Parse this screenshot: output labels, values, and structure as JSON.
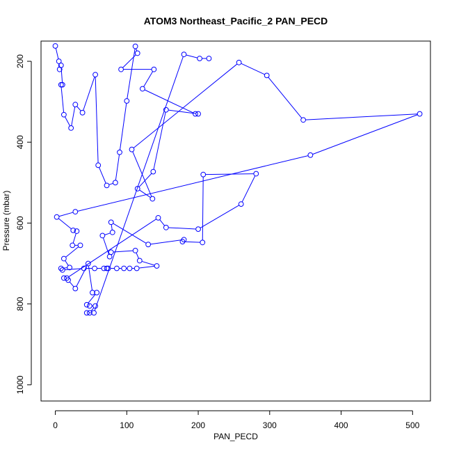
{
  "chart_data": {
    "type": "scatter",
    "title": "ATOM3 Northeast_Pacific_2 PAN_PECD",
    "xlabel": "PAN_PECD",
    "ylabel": "Pressure (mbar)",
    "xlim": [
      -20,
      525
    ],
    "ylim": [
      1040,
      150
    ],
    "y_reversed": true,
    "x_ticks": [
      "0",
      "100",
      "200",
      "300",
      "400",
      "500"
    ],
    "y_ticks": [
      "200",
      "400",
      "600",
      "800",
      "1000"
    ],
    "grid": false,
    "line_color": "#0000ff",
    "series": [
      {
        "points": [
          [
            0,
            162
          ],
          [
            5,
            200
          ],
          [
            6,
            220
          ],
          [
            8,
            210
          ],
          [
            10,
            258
          ],
          [
            8,
            258
          ],
          [
            12,
            332
          ],
          [
            22,
            365
          ],
          [
            28,
            307
          ],
          [
            38,
            327
          ],
          [
            56,
            233
          ],
          [
            60,
            457
          ],
          [
            72,
            507
          ],
          [
            84,
            500
          ],
          [
            90,
            425
          ],
          [
            100,
            298
          ],
          [
            112,
            163
          ],
          [
            115,
            180
          ],
          [
            92,
            220
          ],
          [
            138,
            220
          ],
          [
            122,
            268
          ],
          [
            196,
            330
          ],
          [
            200,
            330
          ],
          [
            155,
            320
          ],
          [
            137,
            473
          ],
          [
            115,
            515
          ],
          [
            136,
            540
          ],
          [
            107,
            418
          ],
          [
            257,
            203
          ],
          [
            296,
            235
          ],
          [
            347,
            345
          ],
          [
            510,
            330
          ],
          [
            357,
            432
          ],
          [
            28,
            572
          ],
          [
            2,
            585
          ],
          [
            25,
            618
          ],
          [
            30,
            620
          ],
          [
            24,
            655
          ],
          [
            35,
            655
          ],
          [
            12,
            688
          ],
          [
            20,
            710
          ],
          [
            8,
            712
          ],
          [
            10,
            716
          ],
          [
            40,
            712
          ],
          [
            55,
            712
          ],
          [
            68,
            712
          ],
          [
            72,
            712
          ],
          [
            74,
            712
          ],
          [
            86,
            712
          ],
          [
            96,
            712
          ],
          [
            104,
            712
          ],
          [
            114,
            712
          ],
          [
            142,
            706
          ],
          [
            118,
            693
          ],
          [
            112,
            668
          ],
          [
            78,
            672
          ],
          [
            76,
            683
          ],
          [
            66,
            631
          ],
          [
            80,
            623
          ],
          [
            78,
            598
          ],
          [
            130,
            653
          ],
          [
            180,
            641
          ],
          [
            178,
            646
          ],
          [
            206,
            648
          ],
          [
            207,
            480
          ],
          [
            281,
            478
          ],
          [
            260,
            553
          ],
          [
            200,
            615
          ],
          [
            155,
            611
          ],
          [
            144,
            587
          ],
          [
            16,
            736
          ],
          [
            12,
            736
          ],
          [
            18,
            741
          ],
          [
            28,
            762
          ],
          [
            46,
            700
          ],
          [
            52,
            772
          ],
          [
            58,
            772
          ],
          [
            44,
            802
          ],
          [
            48,
            805
          ],
          [
            56,
            805
          ],
          [
            48,
            822
          ],
          [
            44,
            822
          ],
          [
            54,
            822
          ],
          [
            180,
            183
          ],
          [
            202,
            193
          ],
          [
            215,
            193
          ]
        ]
      }
    ]
  }
}
